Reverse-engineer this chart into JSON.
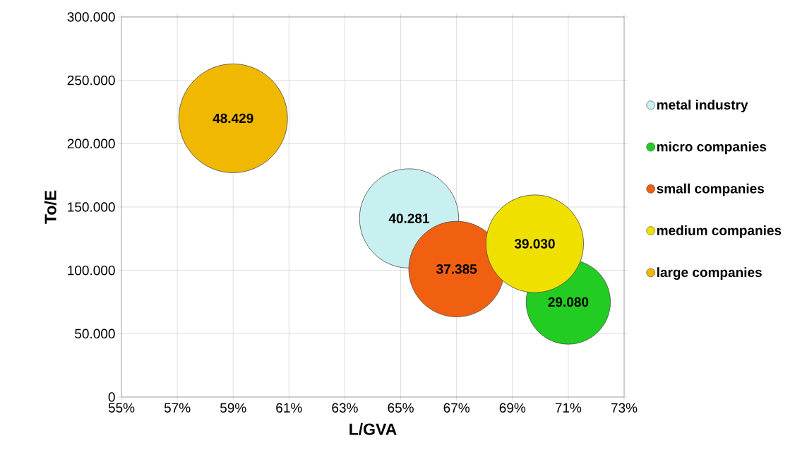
{
  "chart_data": {
    "type": "bubble",
    "xlabel": "L/GVA",
    "ylabel": "To/E",
    "xlim": [
      55,
      73
    ],
    "xticks": [
      {
        "value": 55,
        "label": "55%"
      },
      {
        "value": 57,
        "label": "57%"
      },
      {
        "value": 59,
        "label": "59%"
      },
      {
        "value": 61,
        "label": "61%"
      },
      {
        "value": 63,
        "label": "63%"
      },
      {
        "value": 65,
        "label": "65%"
      },
      {
        "value": 67,
        "label": "67%"
      },
      {
        "value": 69,
        "label": "69%"
      },
      {
        "value": 71,
        "label": "71%"
      },
      {
        "value": 73,
        "label": "73%"
      }
    ],
    "ylim": [
      0,
      300000
    ],
    "yticks": [
      0,
      {
        "value": 50000,
        "label": "50.000"
      },
      {
        "value": 100000,
        "label": "100.000"
      },
      {
        "value": 150000,
        "label": "150.000"
      },
      {
        "value": 200000,
        "label": "200.000"
      },
      {
        "value": 250000,
        "label": "250.000"
      },
      {
        "value": 300000,
        "label": "300.000"
      }
    ],
    "grid": true,
    "legend": "right",
    "series": [
      {
        "name": "metal industry",
        "color": "#c8f0f0",
        "x": [
          65.3
        ],
        "values": [
          141000
        ],
        "sizes": [
          0.832
        ]
      },
      {
        "name": "micro companies",
        "color": "#22cc22",
        "x": [
          71.0
        ],
        "values": [
          75000
        ],
        "sizes": [
          0.6
        ]
      },
      {
        "name": "small companies",
        "color": "#f06010",
        "x": [
          67.0
        ],
        "values": [
          101000
        ],
        "sizes": [
          0.772
        ]
      },
      {
        "name": "medium companies",
        "color": "#f0e000",
        "x": [
          69.8
        ],
        "values": [
          121000
        ],
        "sizes": [
          0.806
        ]
      },
      {
        "name": "large companies",
        "color": "#f0b800",
        "x": [
          59.0
        ],
        "values": [
          220000
        ],
        "sizes": [
          1
        ]
      }
    ],
    "annotations": [
      {
        "text": "40.281",
        "x": 65.3,
        "y": 141000
      },
      {
        "text": "29.080",
        "x": 71.0,
        "y": 75000
      },
      {
        "text": "37.385",
        "x": 67.0,
        "y": 101000
      },
      {
        "text": "39.030",
        "x": 69.8,
        "y": 121000
      },
      {
        "text": "48.429",
        "x": 59.0,
        "y": 220000
      }
    ]
  }
}
